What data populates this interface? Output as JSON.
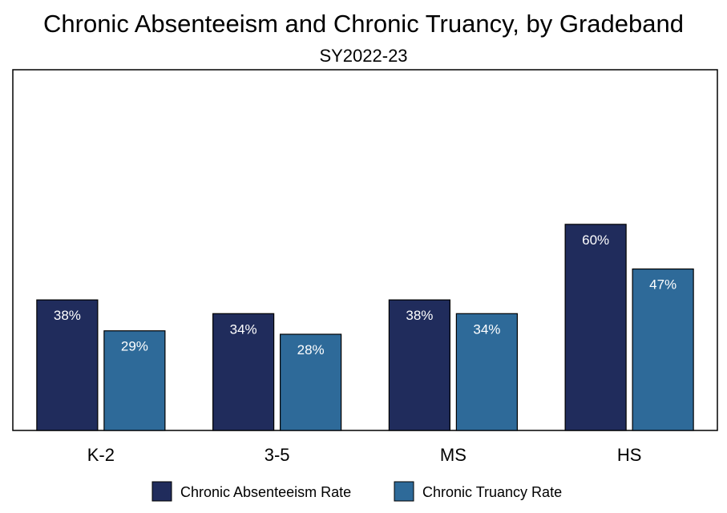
{
  "chart_data": {
    "type": "bar",
    "title": "Chronic Absenteeism and Chronic Truancy, by Gradeband",
    "subtitle": "SY2022-23",
    "xlabel": "",
    "ylabel": "",
    "categories": [
      "K-2",
      "3-5",
      "MS",
      "HS"
    ],
    "series": [
      {
        "name": "Chronic Absenteeism Rate",
        "values": [
          38,
          34,
          38,
          60
        ],
        "labels": [
          "38%",
          "34%",
          "38%",
          "60%"
        ],
        "color": "#202C5C"
      },
      {
        "name": "Chronic Truancy Rate",
        "values": [
          29,
          28,
          34,
          47
        ],
        "labels": [
          "29%",
          "28%",
          "34%",
          "47%"
        ],
        "color": "#2E6A99"
      }
    ],
    "ylim": [
      0,
      105
    ],
    "grid": false,
    "legend_position": "bottom"
  }
}
